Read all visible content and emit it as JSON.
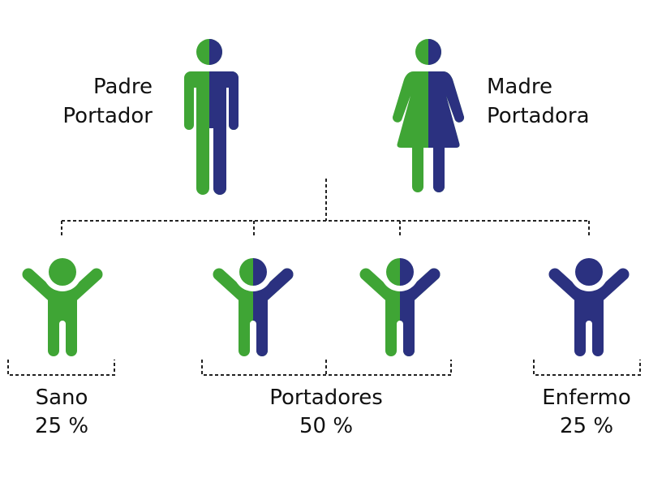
{
  "colors": {
    "healthy": "#3fa535",
    "affected": "#2b3180",
    "connector": "#222222"
  },
  "parents": [
    {
      "label_line1": "Padre",
      "label_line2": "Portador",
      "icon": "man-icon",
      "split": true
    },
    {
      "label_line1": "Madre",
      "label_line2": "Portadora",
      "icon": "woman-icon",
      "split": true
    }
  ],
  "children": [
    {
      "icon": "child-icon",
      "type": "healthy"
    },
    {
      "icon": "child-icon",
      "type": "carrier"
    },
    {
      "icon": "child-icon",
      "type": "carrier"
    },
    {
      "icon": "child-icon",
      "type": "affected"
    }
  ],
  "outcomes": [
    {
      "label": "Sano",
      "percent": "25 %"
    },
    {
      "label": "Portadores",
      "percent": "50 %"
    },
    {
      "label": "Enfermo",
      "percent": "25 %"
    }
  ]
}
